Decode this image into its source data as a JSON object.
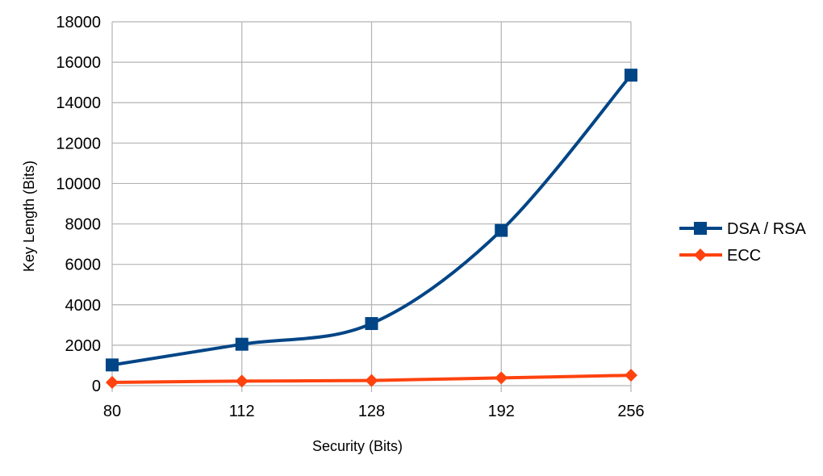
{
  "chart_data": {
    "type": "line",
    "title": "",
    "xlabel": "Security (Bits)",
    "ylabel": "Key Length (Bits)",
    "categories": [
      "80",
      "112",
      "128",
      "192",
      "256"
    ],
    "ylim": [
      0,
      18000
    ],
    "yticks": [
      "0",
      "2000",
      "4000",
      "6000",
      "8000",
      "10000",
      "12000",
      "14000",
      "16000",
      "18000"
    ],
    "grid": true,
    "legend_position": "right",
    "series": [
      {
        "name": "DSA / RSA",
        "values": [
          1024,
          2048,
          3072,
          7680,
          15360
        ],
        "color": "#004586",
        "marker": "square"
      },
      {
        "name": "ECC",
        "values": [
          160,
          224,
          256,
          384,
          512
        ],
        "color": "#ff420e",
        "marker": "diamond"
      }
    ]
  }
}
